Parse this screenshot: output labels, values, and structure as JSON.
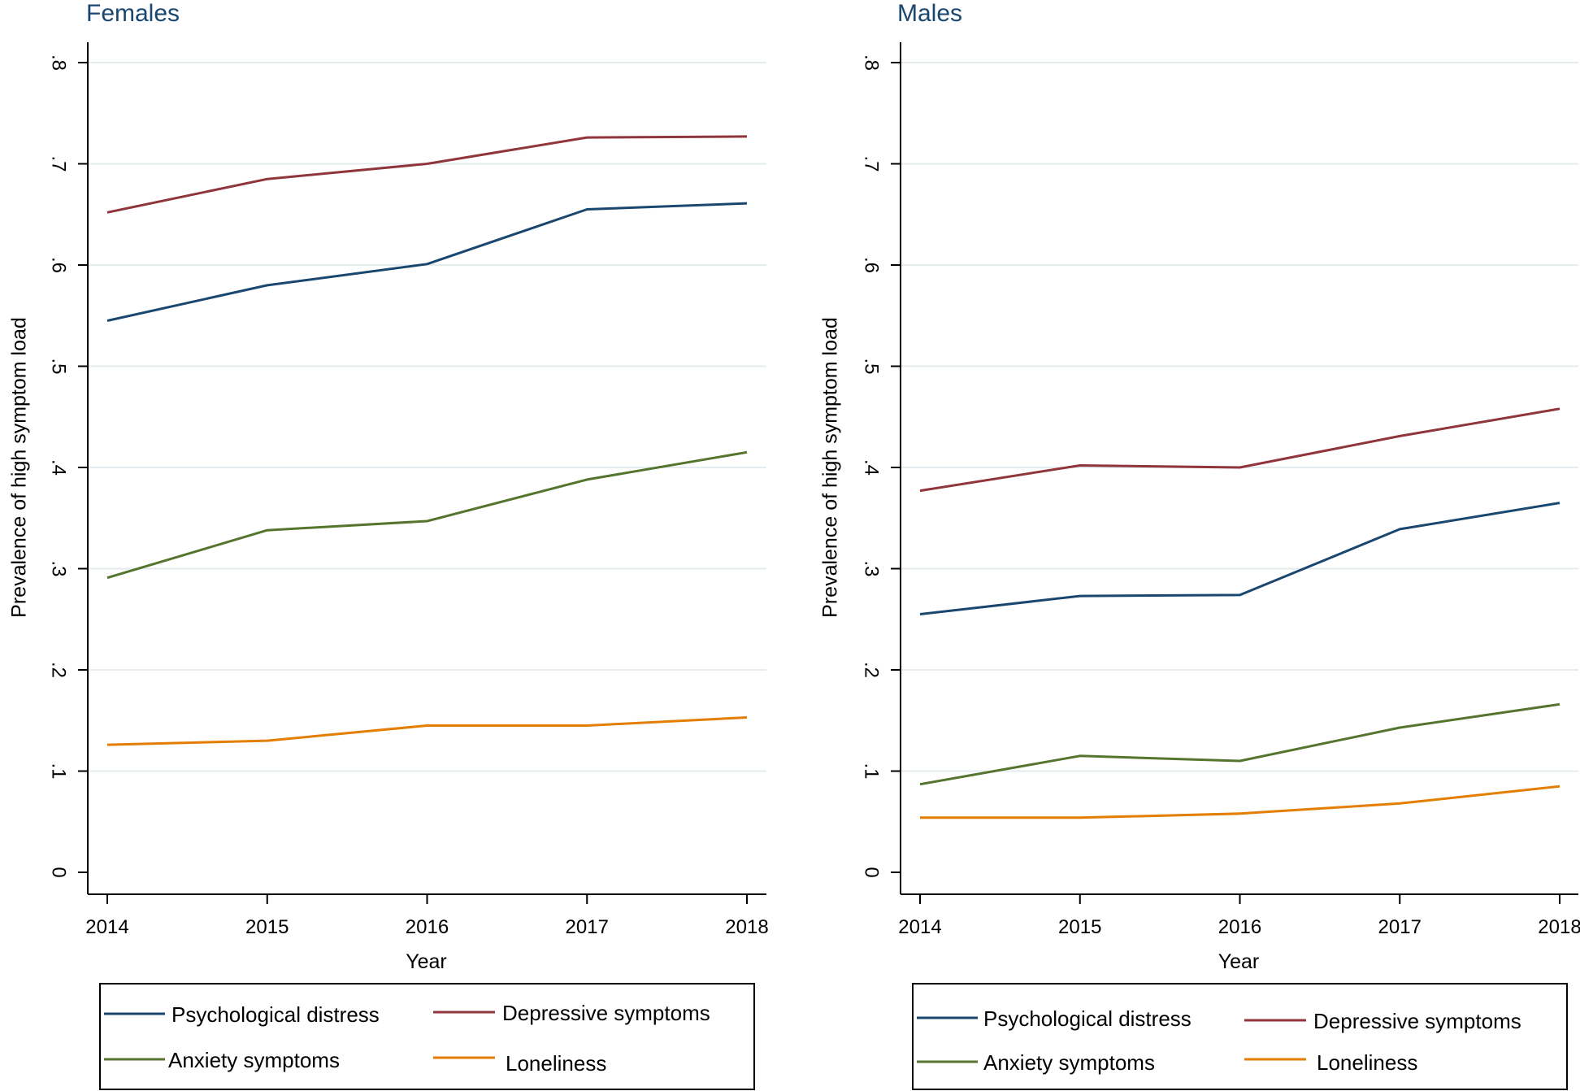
{
  "chart_data": [
    {
      "type": "line",
      "title": "Females",
      "xlabel": "Year",
      "ylabel": "Prevalence of high symptom load",
      "x": [
        2014,
        2015,
        2016,
        2017,
        2018
      ],
      "x_tick_labels": [
        "2014",
        "2015",
        "2016",
        "2017",
        "2018"
      ],
      "ylim": [
        0,
        0.8
      ],
      "y_ticks": [
        0,
        0.1,
        0.2,
        0.3,
        0.4,
        0.5,
        0.6,
        0.7,
        0.8
      ],
      "y_tick_labels": [
        "0",
        ".1",
        ".2",
        ".3",
        ".4",
        ".5",
        ".6",
        ".7",
        ".8"
      ],
      "grid": true,
      "series": [
        {
          "name": "Psychological distress",
          "color": "#1a476f",
          "values": [
            0.545,
            0.58,
            0.601,
            0.655,
            0.661
          ]
        },
        {
          "name": "Depressive symptoms",
          "color": "#90353b",
          "values": [
            0.652,
            0.685,
            0.7,
            0.726,
            0.727
          ]
        },
        {
          "name": "Anxiety symptoms",
          "color": "#55752f",
          "values": [
            0.291,
            0.338,
            0.347,
            0.388,
            0.415
          ]
        },
        {
          "name": "Loneliness",
          "color": "#e37e00",
          "values": [
            0.126,
            0.13,
            0.145,
            0.145,
            0.153
          ]
        }
      ]
    },
    {
      "type": "line",
      "title": "Males",
      "xlabel": "Year",
      "ylabel": "Prevalence of high symptom load",
      "x": [
        2014,
        2015,
        2016,
        2017,
        2018
      ],
      "x_tick_labels": [
        "2014",
        "2015",
        "2016",
        "2017",
        "2018"
      ],
      "ylim": [
        0,
        0.8
      ],
      "y_ticks": [
        0,
        0.1,
        0.2,
        0.3,
        0.4,
        0.5,
        0.6,
        0.7,
        0.8
      ],
      "y_tick_labels": [
        "0",
        ".1",
        ".2",
        ".3",
        ".4",
        ".5",
        ".6",
        ".7",
        ".8"
      ],
      "grid": true,
      "series": [
        {
          "name": "Psychological distress",
          "color": "#1a476f",
          "values": [
            0.255,
            0.273,
            0.274,
            0.339,
            0.365
          ]
        },
        {
          "name": "Depressive symptoms",
          "color": "#90353b",
          "values": [
            0.377,
            0.402,
            0.4,
            0.431,
            0.458
          ]
        },
        {
          "name": "Anxiety symptoms",
          "color": "#55752f",
          "values": [
            0.087,
            0.115,
            0.11,
            0.143,
            0.166
          ]
        },
        {
          "name": "Loneliness",
          "color": "#e37e00",
          "values": [
            0.054,
            0.054,
            0.058,
            0.068,
            0.085
          ]
        }
      ]
    }
  ]
}
